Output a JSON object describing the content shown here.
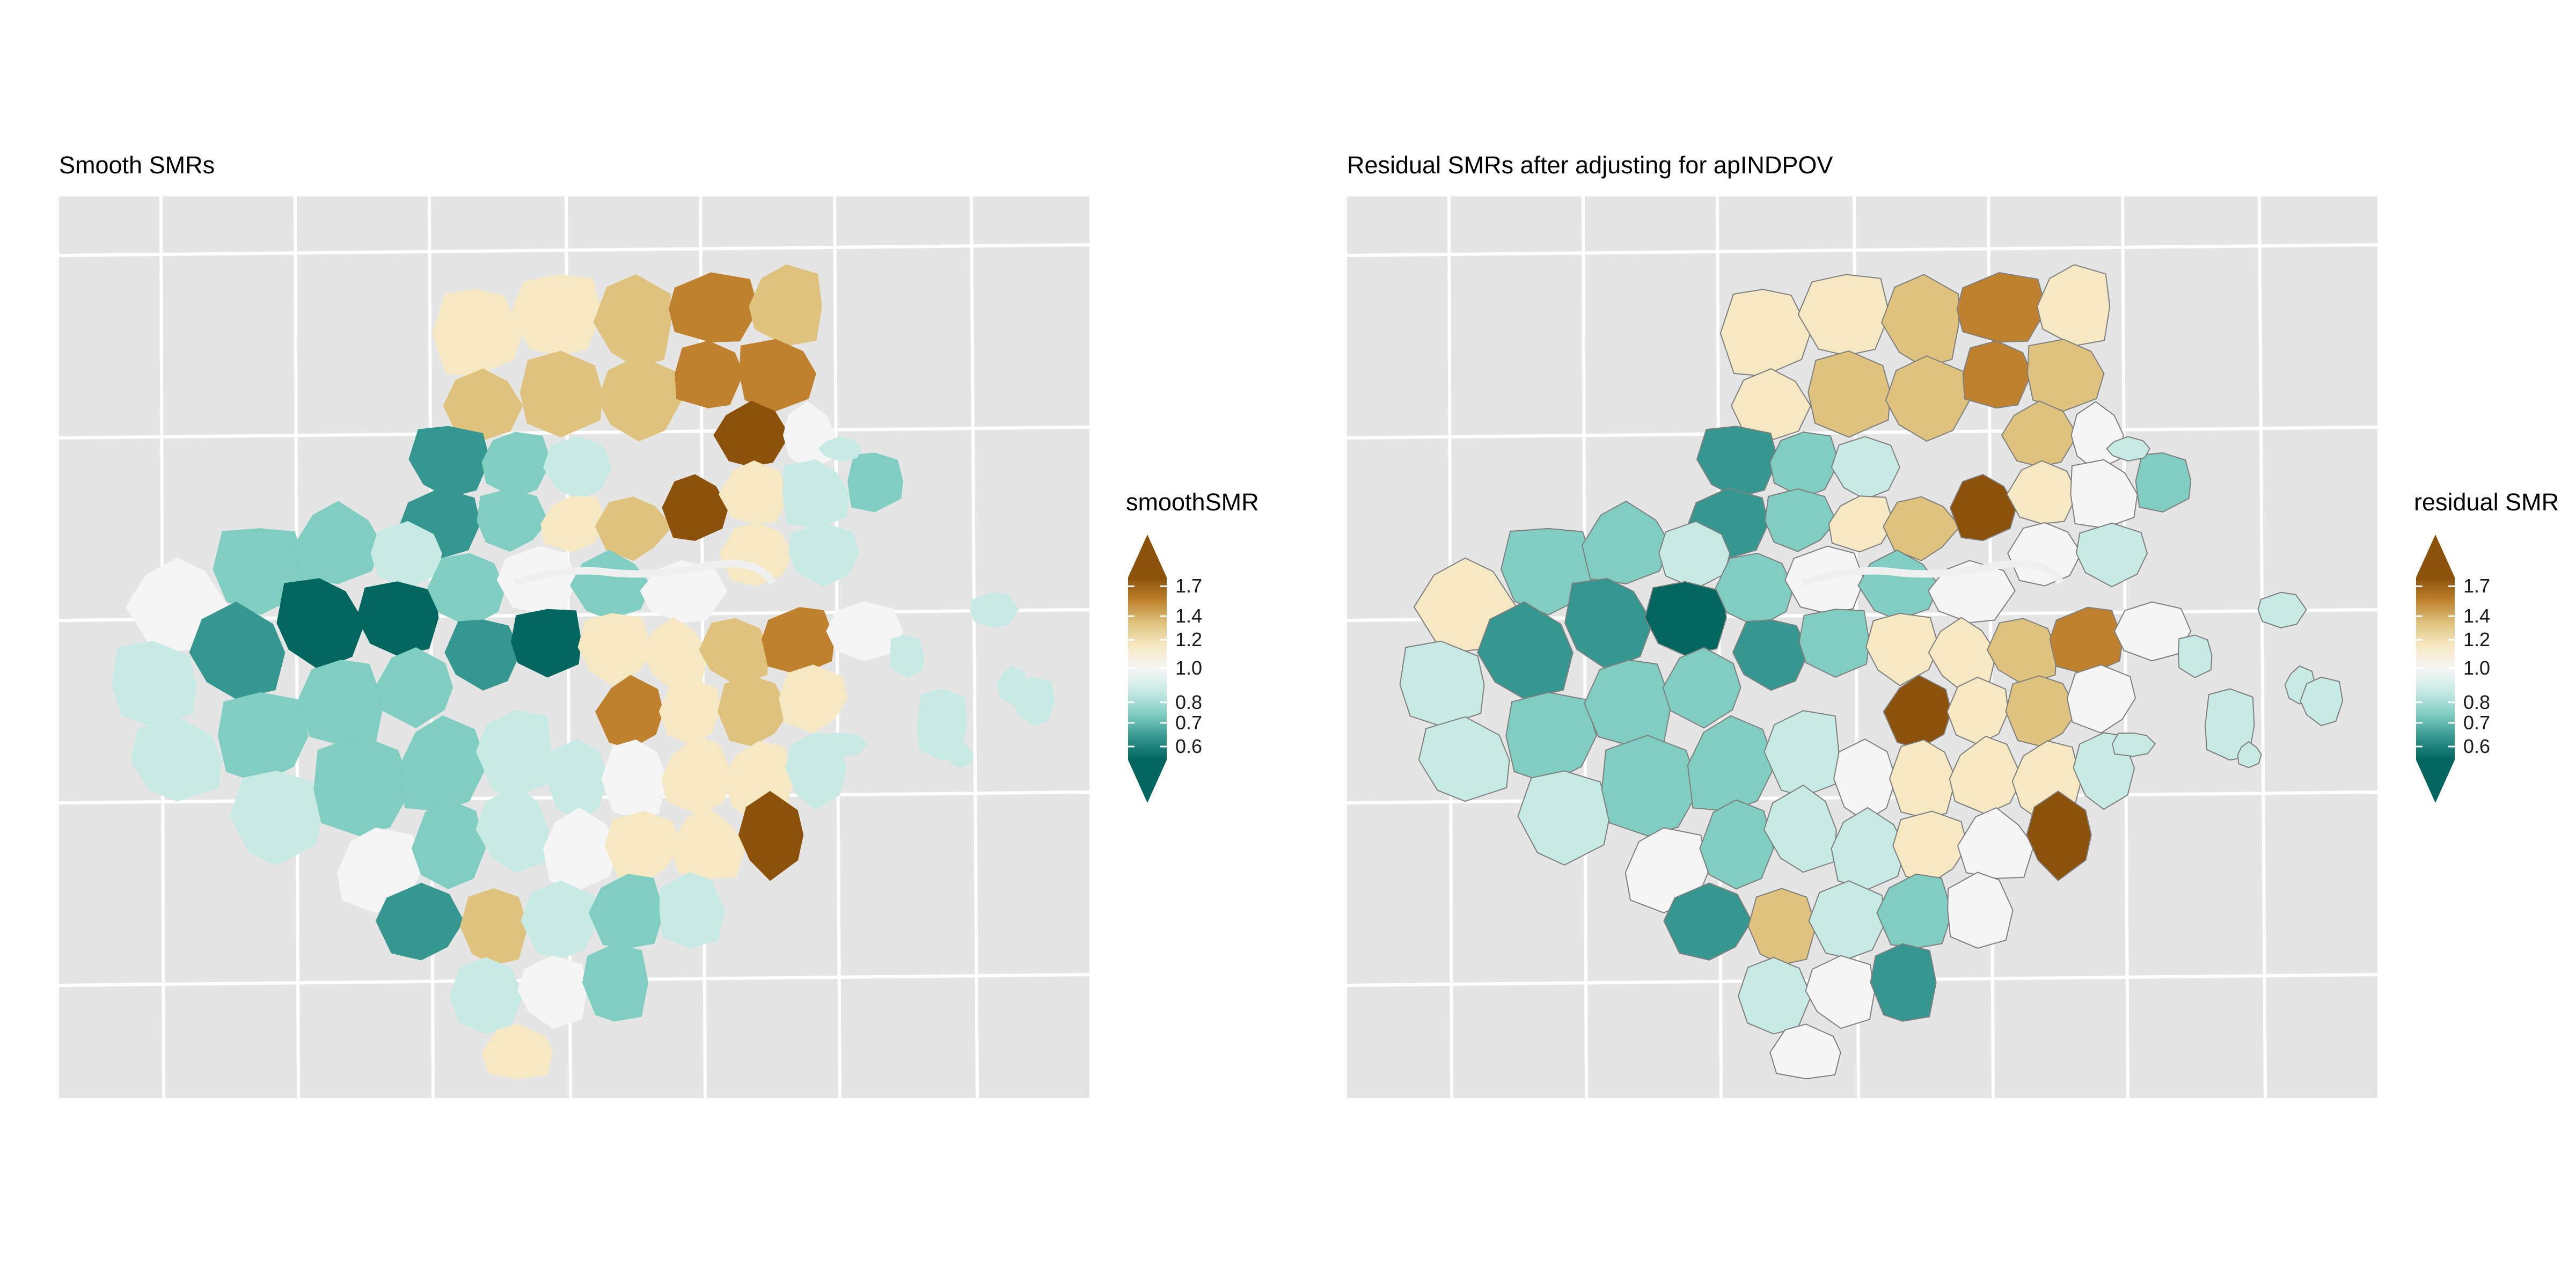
{
  "panels": [
    {
      "title": "Smooth SMRs",
      "legend_title": "smoothSMR",
      "outlines": false
    },
    {
      "title": "Residual SMRs after adjusting for apINDPOV",
      "legend_title": "residual SMR",
      "outlines": true
    }
  ],
  "legend": {
    "ticks": [
      "1.7",
      "1.4",
      "1.2",
      "1.0",
      "0.8",
      "0.7",
      "0.6"
    ],
    "tick_values": [
      1.7,
      1.4,
      1.2,
      1.0,
      0.8,
      0.7,
      0.6
    ],
    "palette": [
      "#01665e",
      "#35978f",
      "#80cdc1",
      "#c7eae5",
      "#f5f5f5",
      "#f6e8c3",
      "#dfc27d",
      "#bf812d",
      "#8c510a"
    ],
    "scale": "log",
    "range": [
      0.55,
      1.8
    ]
  },
  "colors": {
    "panel_background": "#e5e5e5",
    "grid": "#ffffff",
    "outline": "#7f7f7f"
  }
}
